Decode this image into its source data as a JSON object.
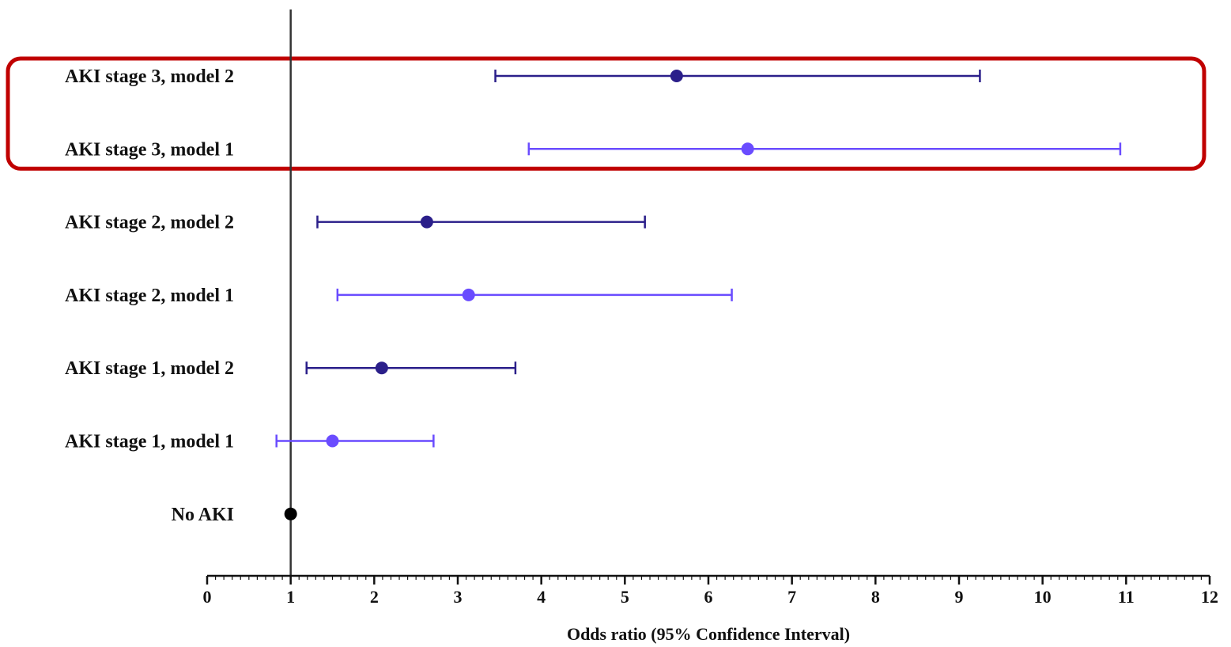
{
  "chart_data": {
    "type": "forest",
    "xlabel": "Odds ratio (95% Confidence Interval)",
    "xlim": [
      0,
      12
    ],
    "x_ticks": [
      0,
      1,
      2,
      3,
      4,
      5,
      6,
      7,
      8,
      9,
      10,
      11,
      12
    ],
    "reference_line": 1,
    "highlight_box": {
      "rows": [
        "AKI stage 3, model 2",
        "AKI stage 3, model 1"
      ],
      "color": "#c00000"
    },
    "colors": {
      "model_2": "#2b1f8a",
      "model_1": "#6a4cff",
      "reference": "#000000",
      "axis": "#111111"
    },
    "rows": [
      {
        "label": "AKI stage 3, model 2",
        "or": 5.62,
        "lower": 3.45,
        "upper": 9.25,
        "model": "model_2"
      },
      {
        "label": "AKI stage 3, model 1",
        "or": 6.47,
        "lower": 3.85,
        "upper": 10.93,
        "model": "model_1"
      },
      {
        "label": "AKI stage 2, model 2",
        "or": 2.63,
        "lower": 1.32,
        "upper": 5.24,
        "model": "model_2"
      },
      {
        "label": "AKI stage 2, model 1",
        "or": 3.13,
        "lower": 1.56,
        "upper": 6.28,
        "model": "model_1"
      },
      {
        "label": "AKI stage 1, model 2",
        "or": 2.09,
        "lower": 1.19,
        "upper": 3.69,
        "model": "model_2"
      },
      {
        "label": "AKI stage 1, model 1",
        "or": 1.5,
        "lower": 0.83,
        "upper": 2.71,
        "model": "model_1"
      },
      {
        "label": "No AKI",
        "or": 1.0,
        "lower": null,
        "upper": null,
        "model": "reference"
      }
    ]
  }
}
